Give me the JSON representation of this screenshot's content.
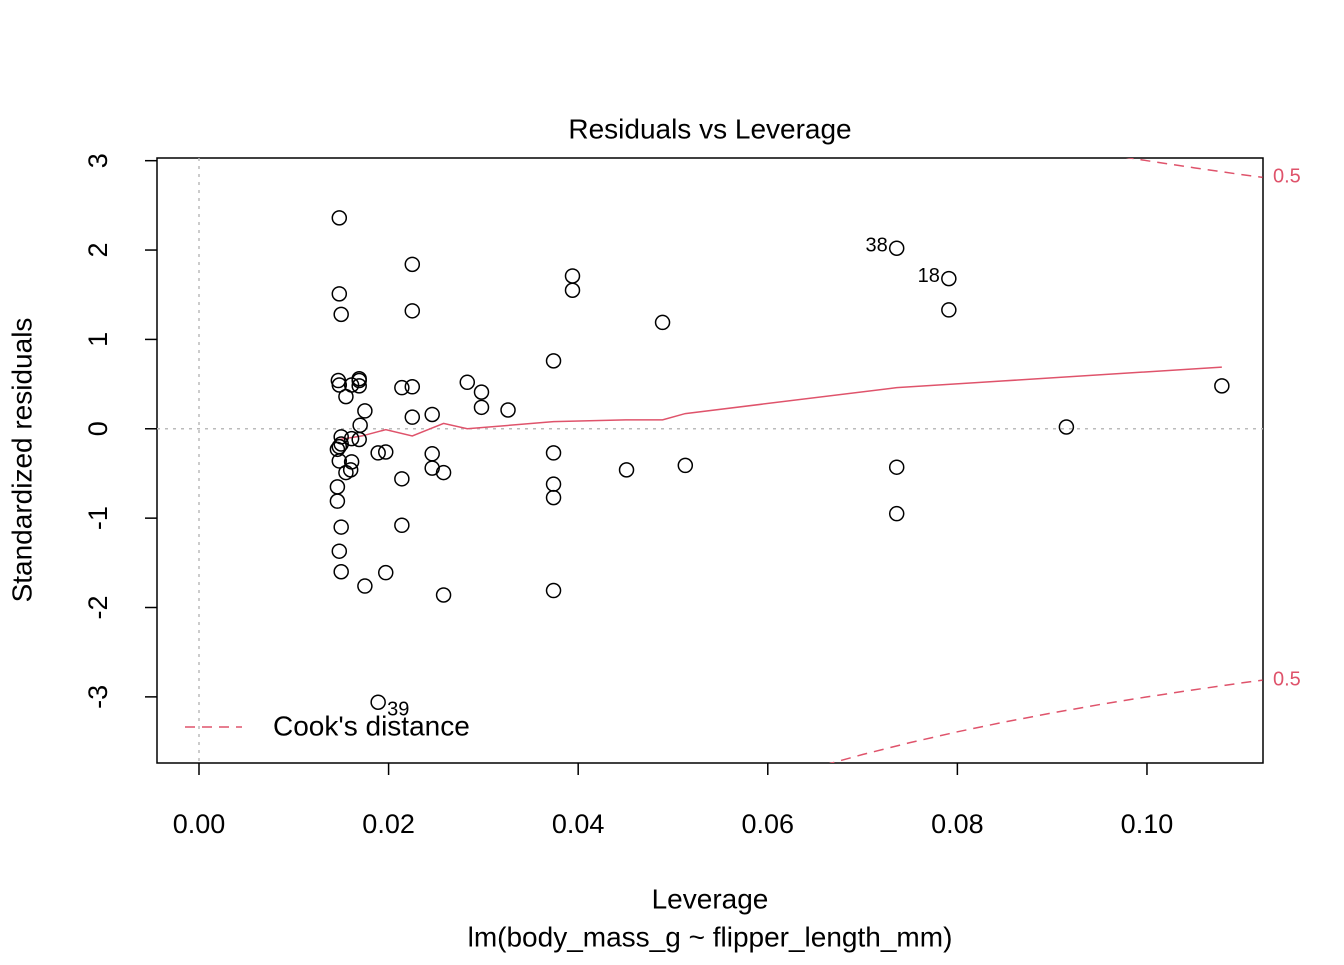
{
  "chart_data": {
    "type": "scatter",
    "title": "Residuals vs Leverage",
    "x_label": "Leverage",
    "subtitle": "lm(body_mass_g ~ flipper_length_mm)",
    "y_label": "Standardized residuals",
    "xlim": [
      -0.00443,
      0.11224
    ],
    "ylim": [
      -3.74,
      3.03
    ],
    "xticks": [
      {
        "value": 0,
        "label": "0.00"
      },
      0.02,
      0.04,
      0.06,
      0.08,
      {
        "value": 0.1,
        "label": "0.10"
      }
    ],
    "yticks": [
      -3,
      -2,
      -1,
      0,
      1,
      2,
      3
    ],
    "color": "#000000",
    "x": [
      0.0148,
      0.0148,
      0.015,
      0.0147,
      0.0148,
      0.0161,
      0.0169,
      0.0169,
      0.0169,
      0.0155,
      0.0175,
      0.017,
      0.015,
      0.0161,
      0.0169,
      0.0148,
      0.015,
      0.0146,
      0.0148,
      0.0161,
      0.016,
      0.0155,
      0.0146,
      0.0146,
      0.015,
      0.0148,
      0.015,
      0.0175,
      0.0197,
      0.0189,
      0.0197,
      0.0189,
      0.0214,
      0.0225,
      0.0225,
      0.0225,
      0.0225,
      0.0214,
      0.0214,
      0.0246,
      0.0246,
      0.0246,
      0.0258,
      0.0258,
      0.0283,
      0.0298,
      0.0298,
      0.0326,
      0.0394,
      0.0394,
      0.0374,
      0.0374,
      0.0374,
      0.0374,
      0.0374,
      0.0451,
      0.0489,
      0.0513,
      0.0736,
      0.0736,
      0.0736,
      0.0791,
      0.0791,
      0.0915,
      0.1079
    ],
    "values": [
      2.36,
      1.51,
      1.28,
      0.54,
      0.49,
      0.49,
      0.56,
      0.54,
      0.48,
      0.36,
      0.2,
      0.04,
      -0.09,
      -0.11,
      -0.12,
      -0.2,
      -0.17,
      -0.23,
      -0.36,
      -0.37,
      -0.46,
      -0.49,
      -0.65,
      -0.81,
      -1.1,
      -1.37,
      -1.6,
      -1.76,
      -1.61,
      -0.27,
      -0.26,
      -3.06,
      0.46,
      1.84,
      1.32,
      0.47,
      0.13,
      -0.56,
      -1.08,
      0.16,
      -0.28,
      -0.44,
      -0.49,
      -1.86,
      0.52,
      0.41,
      0.24,
      0.21,
      1.71,
      1.55,
      0.76,
      -0.27,
      -0.62,
      -0.77,
      -1.81,
      -0.46,
      1.19,
      -0.41,
      2.02,
      -0.43,
      -0.95,
      1.68,
      1.33,
      0.02,
      0.48
    ],
    "value_labels": [
      null,
      null,
      null,
      null,
      null,
      null,
      null,
      null,
      null,
      null,
      null,
      null,
      null,
      null,
      null,
      null,
      null,
      null,
      null,
      null,
      null,
      null,
      null,
      null,
      null,
      null,
      null,
      null,
      null,
      null,
      null,
      "39",
      null,
      null,
      null,
      null,
      null,
      null,
      null,
      null,
      null,
      null,
      null,
      null,
      null,
      null,
      null,
      null,
      null,
      null,
      null,
      null,
      null,
      null,
      null,
      null,
      null,
      null,
      "38",
      null,
      null,
      "18",
      null,
      null,
      null
    ],
    "smooth": {
      "color": "#DF536B",
      "x": [
        0.0148,
        0.0172,
        0.0197,
        0.0225,
        0.0258,
        0.0283,
        0.0374,
        0.045,
        0.0489,
        0.0513,
        0.0736,
        0.1079
      ],
      "values": [
        -0.12,
        -0.08,
        -0.01,
        -0.08,
        0.06,
        0.0,
        0.08,
        0.1,
        0.1,
        0.17,
        0.46,
        0.69
      ]
    },
    "cooks_distance": {
      "legend": "Cook's distance",
      "color": "#DF536B",
      "contours": [
        {
          "label": "0.5",
          "x": [
            0.066,
            0.07,
            0.075,
            0.08,
            0.085,
            0.09,
            0.095,
            0.1,
            0.105,
            0.11,
            0.1122
          ],
          "values": [
            3.762,
            3.645,
            3.512,
            3.391,
            3.281,
            3.18,
            3.086,
            3.0,
            2.92,
            2.844,
            2.813
          ]
        },
        {
          "label": "0.5",
          "x": [
            0.066,
            0.07,
            0.075,
            0.08,
            0.085,
            0.09,
            0.095,
            0.1,
            0.105,
            0.11,
            0.1122
          ],
          "values": [
            -3.762,
            -3.645,
            -3.512,
            -3.391,
            -3.281,
            -3.18,
            -3.086,
            -3.0,
            -2.92,
            -2.844,
            -2.813
          ]
        }
      ]
    }
  }
}
